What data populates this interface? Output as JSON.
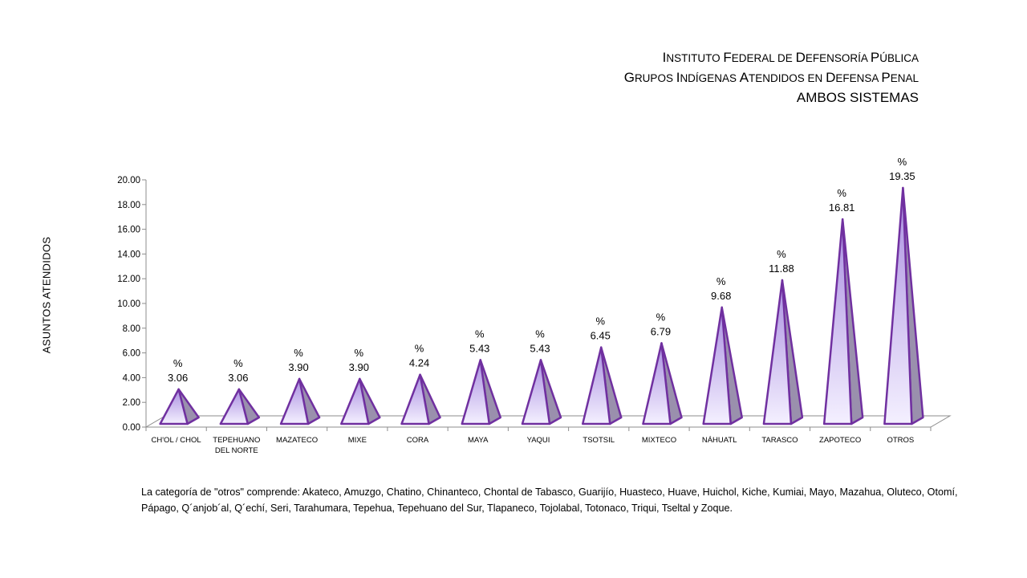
{
  "title": {
    "line1": [
      [
        "I",
        "NSTITUTO "
      ],
      [
        "F",
        "EDERAL DE "
      ],
      [
        "D",
        "EFENSORÍA "
      ],
      [
        "P",
        "ÚBLICA"
      ]
    ],
    "line2": [
      [
        "G",
        "RUPOS "
      ],
      [
        "I",
        "NDÍGENAS  "
      ],
      [
        "A",
        "TENDIDOS EN "
      ],
      [
        "D",
        "EFENSA "
      ],
      [
        "P",
        "ENAL"
      ]
    ],
    "line3": "AMBOS SISTEMAS"
  },
  "note": "La categoría de \"otros\" comprende: Akateco, Amuzgo, Chatino,  Chinanteco, Chontal de Tabasco, Guarijío, Huasteco, Huave, Huichol, Kiche, Kumiai, Mayo, Mazahua, Oluteco, Otomí, Pápago, Q´anjob´al, Q´echí, Seri, Tarahumara, Tepehua,  Tepehuano del Sur, Tlapaneco, Tojolabal, Totonaco, Triqui, Tseltal y Zoque.",
  "colors": {
    "outline": "#7030a0",
    "front_top": "#a98ee0",
    "front_bottom": "#f4f0ff",
    "side": "#9a90ad"
  },
  "chart_data": {
    "type": "bar",
    "shape": "pyramid",
    "ylabel": "ASUNTOS ATENDIDOS",
    "ylim": [
      0,
      20
    ],
    "yticks": [
      "0.00",
      "2.00",
      "4.00",
      "6.00",
      "8.00",
      "10.00",
      "12.00",
      "14.00",
      "16.00",
      "18.00",
      "20.00"
    ],
    "ytick_values": [
      0,
      2,
      4,
      6,
      8,
      10,
      12,
      14,
      16,
      18,
      20
    ],
    "grid": false,
    "categories": [
      [
        "CH'OL / CHOL"
      ],
      [
        "TEPEHUANO",
        "DEL NORTE"
      ],
      [
        "MAZATECO"
      ],
      [
        "MIXE"
      ],
      [
        "CORA"
      ],
      [
        "MAYA"
      ],
      [
        "YAQUI"
      ],
      [
        "TSOTSIL"
      ],
      [
        "MIXTECO"
      ],
      [
        "NÁHUATL"
      ],
      [
        "TARASCO"
      ],
      [
        "ZAPOTECO"
      ],
      [
        "OTROS"
      ]
    ],
    "values": [
      3.06,
      3.06,
      3.9,
      3.9,
      4.24,
      5.43,
      5.43,
      6.45,
      6.79,
      9.68,
      11.88,
      16.81,
      19.35
    ],
    "value_labels": [
      "3.06",
      "3.06",
      "3.90",
      "3.90",
      "4.24",
      "5.43",
      "5.43",
      "6.45",
      "6.79",
      "9.68",
      "11.88",
      "16.81",
      "19.35"
    ],
    "label_prefix": "%"
  }
}
